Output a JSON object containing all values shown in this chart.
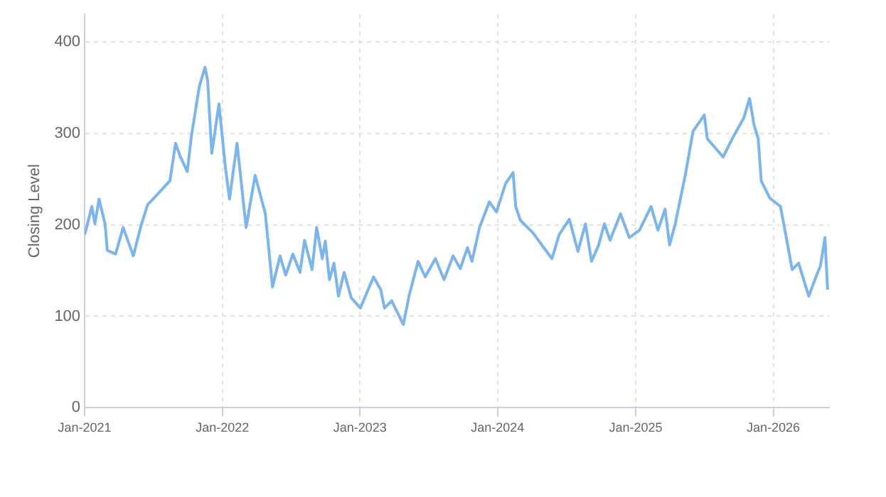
{
  "chart_data": {
    "type": "line",
    "ylabel": "Closing Level",
    "grid": true,
    "marker": "none",
    "line_style": "solid",
    "legend": false,
    "xlim": [
      "2021-01-01",
      "2026-05-29"
    ],
    "xticks": [
      {
        "value": "2021-01",
        "label": "Jan-2021"
      },
      {
        "value": "2022-01",
        "label": "Jan-2022"
      },
      {
        "value": "2023-01",
        "label": "Jan-2023"
      },
      {
        "value": "2024-01",
        "label": "Jan-2024"
      },
      {
        "value": "2025-01",
        "label": "Jan-2025"
      },
      {
        "value": "2026-01",
        "label": "Jan-2026"
      }
    ],
    "ylim": [
      0,
      430
    ],
    "yticks": [
      0,
      100,
      200,
      300,
      400
    ],
    "series": [
      {
        "color": "#7cb5ec",
        "x": [
          "2021-01-01",
          "2021-01-20",
          "2021-01-28",
          "2021-02-08",
          "2021-02-24",
          "2021-03-02",
          "2021-03-24",
          "2021-04-13",
          "2021-05-10",
          "2021-05-29",
          "2021-06-17",
          "2021-07-10",
          "2021-08-15",
          "2021-08-30",
          "2021-09-11",
          "2021-09-30",
          "2021-10-11",
          "2021-11-01",
          "2021-11-16",
          "2021-11-23",
          "2021-12-04",
          "2021-12-23",
          "2022-01-09",
          "2022-01-20",
          "2022-02-09",
          "2022-03-05",
          "2022-03-29",
          "2022-04-25",
          "2022-05-14",
          "2022-06-03",
          "2022-06-18",
          "2022-07-07",
          "2022-07-26",
          "2022-08-07",
          "2022-08-27",
          "2022-09-08",
          "2022-09-23",
          "2022-10-01",
          "2022-10-12",
          "2022-10-24",
          "2022-11-05",
          "2022-11-20",
          "2022-12-09",
          "2023-01-02",
          "2023-02-06",
          "2023-02-25",
          "2023-03-07",
          "2023-03-26",
          "2023-04-26",
          "2023-05-11",
          "2023-06-04",
          "2023-06-23",
          "2023-07-20",
          "2023-08-12",
          "2023-09-05",
          "2023-09-24",
          "2023-10-13",
          "2023-10-25",
          "2023-11-14",
          "2023-12-10",
          "2023-12-29",
          "2024-01-22",
          "2024-02-11",
          "2024-02-18",
          "2024-03-01",
          "2024-04-04",
          "2024-04-27",
          "2024-05-24",
          "2024-06-12",
          "2024-07-09",
          "2024-08-01",
          "2024-08-21",
          "2024-09-06",
          "2024-09-25",
          "2024-10-10",
          "2024-10-25",
          "2024-11-22",
          "2024-12-15",
          "2025-01-11",
          "2025-02-11",
          "2025-03-01",
          "2025-03-20",
          "2025-04-01",
          "2025-04-16",
          "2025-05-13",
          "2025-06-02",
          "2025-07-02",
          "2025-07-10",
          "2025-08-02",
          "2025-08-21",
          "2025-09-18",
          "2025-10-15",
          "2025-10-30",
          "2025-11-11",
          "2025-11-22",
          "2025-11-30",
          "2025-12-23",
          "2026-01-20",
          "2026-02-08",
          "2026-02-20",
          "2026-03-09",
          "2026-04-05",
          "2026-04-24",
          "2026-05-06",
          "2026-05-18",
          "2026-05-25"
        ],
        "values": [
          189,
          220,
          201,
          228,
          201,
          172,
          168,
          197,
          166,
          197,
          222,
          232,
          248,
          289,
          275,
          258,
          297,
          351,
          372,
          358,
          278,
          332,
          263,
          228,
          289,
          197,
          254,
          212,
          132,
          166,
          145,
          168,
          148,
          183,
          151,
          197,
          163,
          182,
          140,
          158,
          122,
          148,
          120,
          109,
          143,
          129,
          109,
          117,
          91,
          122,
          160,
          143,
          163,
          140,
          166,
          152,
          175,
          160,
          197,
          225,
          214,
          245,
          257,
          220,
          205,
          191,
          178,
          163,
          189,
          206,
          171,
          201,
          160,
          178,
          201,
          183,
          212,
          186,
          194,
          220,
          194,
          217,
          178,
          201,
          255,
          302,
          320,
          294,
          283,
          274,
          297,
          317,
          338,
          309,
          294,
          248,
          229,
          220,
          178,
          151,
          158,
          122,
          143,
          155,
          186,
          129
        ]
      }
    ]
  }
}
